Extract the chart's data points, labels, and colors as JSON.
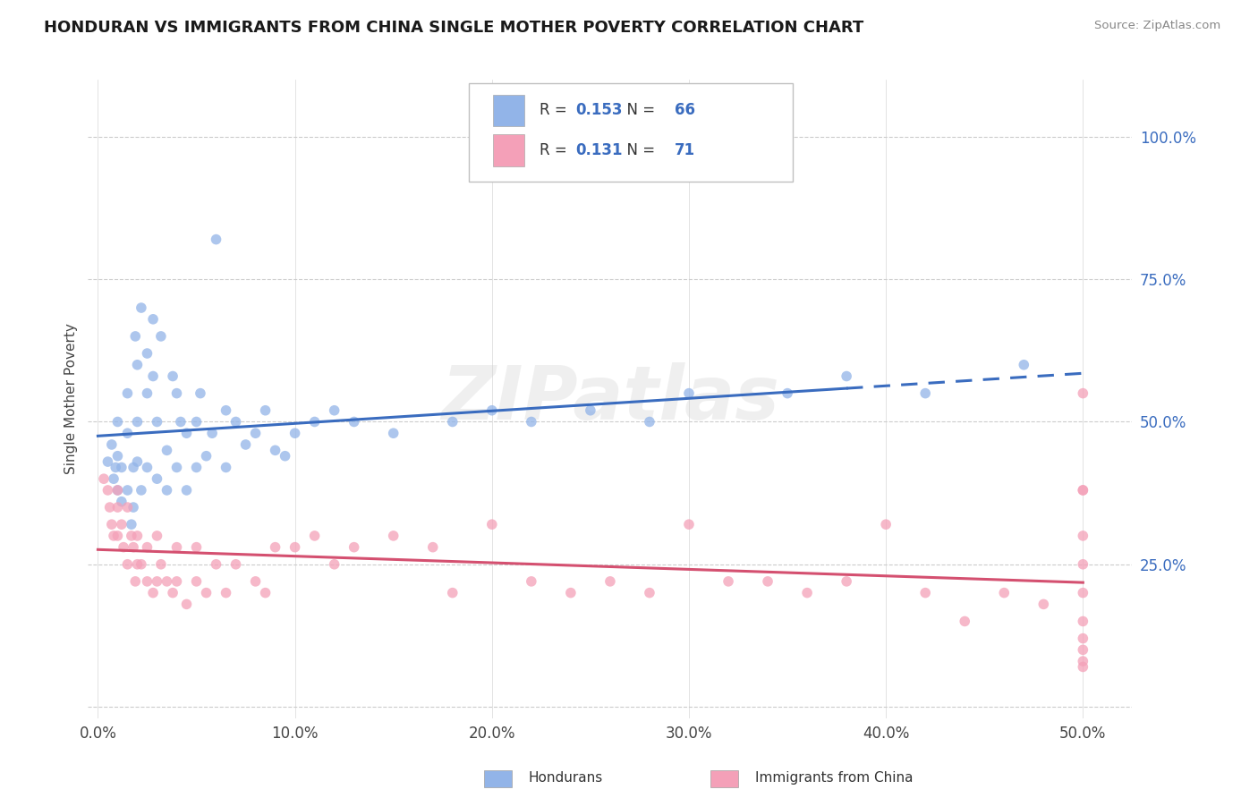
{
  "title": "HONDURAN VS IMMIGRANTS FROM CHINA SINGLE MOTHER POVERTY CORRELATION CHART",
  "source": "Source: ZipAtlas.com",
  "blue_color": "#92b4e8",
  "pink_color": "#f4a0b8",
  "blue_line_color": "#3a6cbf",
  "pink_line_color": "#d45070",
  "stat_color": "#3a6cbf",
  "R_blue": 0.153,
  "N_blue": 66,
  "R_pink": 0.131,
  "N_pink": 71,
  "legend_label_blue": "Hondurans",
  "legend_label_pink": "Immigrants from China",
  "watermark": "ZIPatlas",
  "ylabel": "Single Mother Poverty",
  "ytick_vals": [
    0.0,
    0.25,
    0.5,
    0.75,
    1.0
  ],
  "ytick_labels": [
    "",
    "25.0%",
    "50.0%",
    "75.0%",
    "100.0%"
  ],
  "xtick_vals": [
    0.0,
    0.1,
    0.2,
    0.3,
    0.4,
    0.5
  ],
  "xtick_labels": [
    "0.0%",
    "10.0%",
    "20.0%",
    "30.0%",
    "40.0%",
    "50.0%"
  ],
  "blue_scatter_x": [
    0.005,
    0.007,
    0.008,
    0.009,
    0.01,
    0.01,
    0.01,
    0.012,
    0.012,
    0.015,
    0.015,
    0.015,
    0.017,
    0.018,
    0.018,
    0.019,
    0.02,
    0.02,
    0.02,
    0.022,
    0.022,
    0.025,
    0.025,
    0.025,
    0.028,
    0.028,
    0.03,
    0.03,
    0.032,
    0.035,
    0.035,
    0.038,
    0.04,
    0.04,
    0.042,
    0.045,
    0.045,
    0.05,
    0.05,
    0.052,
    0.055,
    0.058,
    0.06,
    0.065,
    0.065,
    0.07,
    0.075,
    0.08,
    0.085,
    0.09,
    0.095,
    0.1,
    0.11,
    0.12,
    0.13,
    0.15,
    0.18,
    0.2,
    0.22,
    0.25,
    0.28,
    0.3,
    0.35,
    0.38,
    0.42,
    0.47
  ],
  "blue_scatter_y": [
    0.43,
    0.46,
    0.4,
    0.42,
    0.38,
    0.44,
    0.5,
    0.36,
    0.42,
    0.55,
    0.48,
    0.38,
    0.32,
    0.35,
    0.42,
    0.65,
    0.6,
    0.5,
    0.43,
    0.7,
    0.38,
    0.62,
    0.55,
    0.42,
    0.68,
    0.58,
    0.4,
    0.5,
    0.65,
    0.45,
    0.38,
    0.58,
    0.55,
    0.42,
    0.5,
    0.48,
    0.38,
    0.5,
    0.42,
    0.55,
    0.44,
    0.48,
    0.82,
    0.52,
    0.42,
    0.5,
    0.46,
    0.48,
    0.52,
    0.45,
    0.44,
    0.48,
    0.5,
    0.52,
    0.5,
    0.48,
    0.5,
    0.52,
    0.5,
    0.52,
    0.5,
    0.55,
    0.55,
    0.58,
    0.55,
    0.6
  ],
  "pink_scatter_x": [
    0.003,
    0.005,
    0.006,
    0.007,
    0.008,
    0.01,
    0.01,
    0.01,
    0.012,
    0.013,
    0.015,
    0.015,
    0.017,
    0.018,
    0.019,
    0.02,
    0.02,
    0.022,
    0.025,
    0.025,
    0.028,
    0.03,
    0.03,
    0.032,
    0.035,
    0.038,
    0.04,
    0.04,
    0.045,
    0.05,
    0.05,
    0.055,
    0.06,
    0.065,
    0.07,
    0.08,
    0.085,
    0.09,
    0.1,
    0.11,
    0.12,
    0.13,
    0.15,
    0.17,
    0.18,
    0.2,
    0.22,
    0.24,
    0.26,
    0.28,
    0.3,
    0.32,
    0.34,
    0.36,
    0.38,
    0.4,
    0.42,
    0.44,
    0.46,
    0.48,
    0.5,
    0.5,
    0.5,
    0.5,
    0.5,
    0.5,
    0.5,
    0.5,
    0.5,
    0.5,
    0.5
  ],
  "pink_scatter_y": [
    0.4,
    0.38,
    0.35,
    0.32,
    0.3,
    0.38,
    0.35,
    0.3,
    0.32,
    0.28,
    0.35,
    0.25,
    0.3,
    0.28,
    0.22,
    0.3,
    0.25,
    0.25,
    0.28,
    0.22,
    0.2,
    0.3,
    0.22,
    0.25,
    0.22,
    0.2,
    0.28,
    0.22,
    0.18,
    0.28,
    0.22,
    0.2,
    0.25,
    0.2,
    0.25,
    0.22,
    0.2,
    0.28,
    0.28,
    0.3,
    0.25,
    0.28,
    0.3,
    0.28,
    0.2,
    0.32,
    0.22,
    0.2,
    0.22,
    0.2,
    0.32,
    0.22,
    0.22,
    0.2,
    0.22,
    0.32,
    0.2,
    0.15,
    0.2,
    0.18,
    0.55,
    0.38,
    0.3,
    0.25,
    0.2,
    0.15,
    0.12,
    0.1,
    0.08,
    0.38,
    0.07
  ]
}
